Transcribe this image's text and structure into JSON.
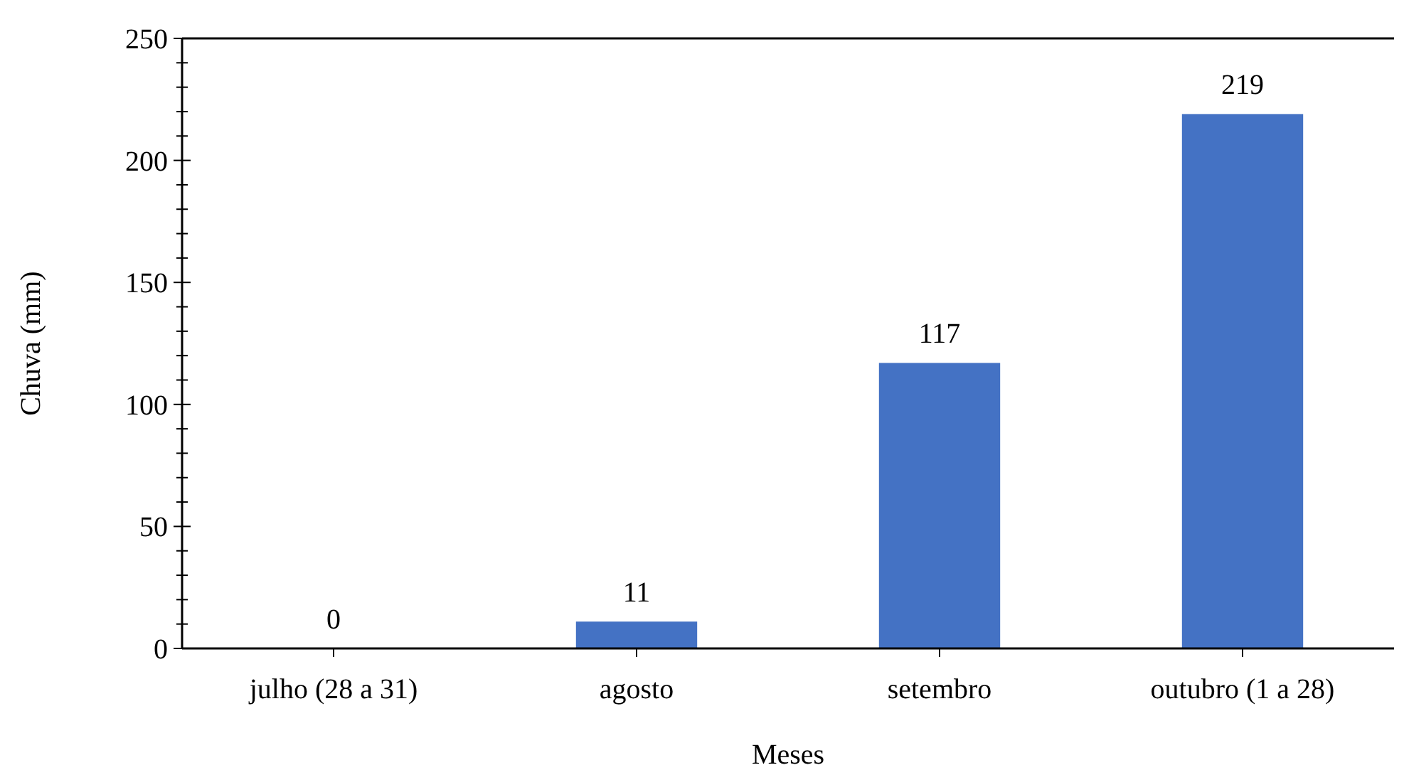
{
  "chart_data": {
    "type": "bar",
    "xlabel": "Meses",
    "ylabel": "Chuva (mm)",
    "categories": [
      "julho (28 a 31)",
      "agosto",
      "setembro",
      "outubro (1 a 28)"
    ],
    "values": [
      0,
      11,
      117,
      219
    ],
    "color": "#4472c4",
    "data_labels": true,
    "ylim": [
      0,
      250
    ],
    "yticks": [
      0,
      {
        "value": 10,
        "label": null
      },
      {
        "value": 20,
        "label": null
      },
      {
        "value": 30,
        "label": null
      },
      {
        "value": 40,
        "label": null
      },
      50,
      {
        "value": 60,
        "label": null
      },
      {
        "value": 70,
        "label": null
      },
      {
        "value": 80,
        "label": null
      },
      {
        "value": 90,
        "label": null
      },
      100,
      {
        "value": 110,
        "label": null
      },
      {
        "value": 120,
        "label": null
      },
      {
        "value": 130,
        "label": null
      },
      {
        "value": 140,
        "label": null
      },
      150,
      {
        "value": 160,
        "label": null
      },
      {
        "value": 170,
        "label": null
      },
      {
        "value": 180,
        "label": null
      },
      {
        "value": 190,
        "label": null
      },
      200,
      {
        "value": 210,
        "label": null
      },
      {
        "value": 220,
        "label": null
      },
      {
        "value": 230,
        "label": null
      },
      {
        "value": 240,
        "label": null
      },
      250
    ]
  }
}
